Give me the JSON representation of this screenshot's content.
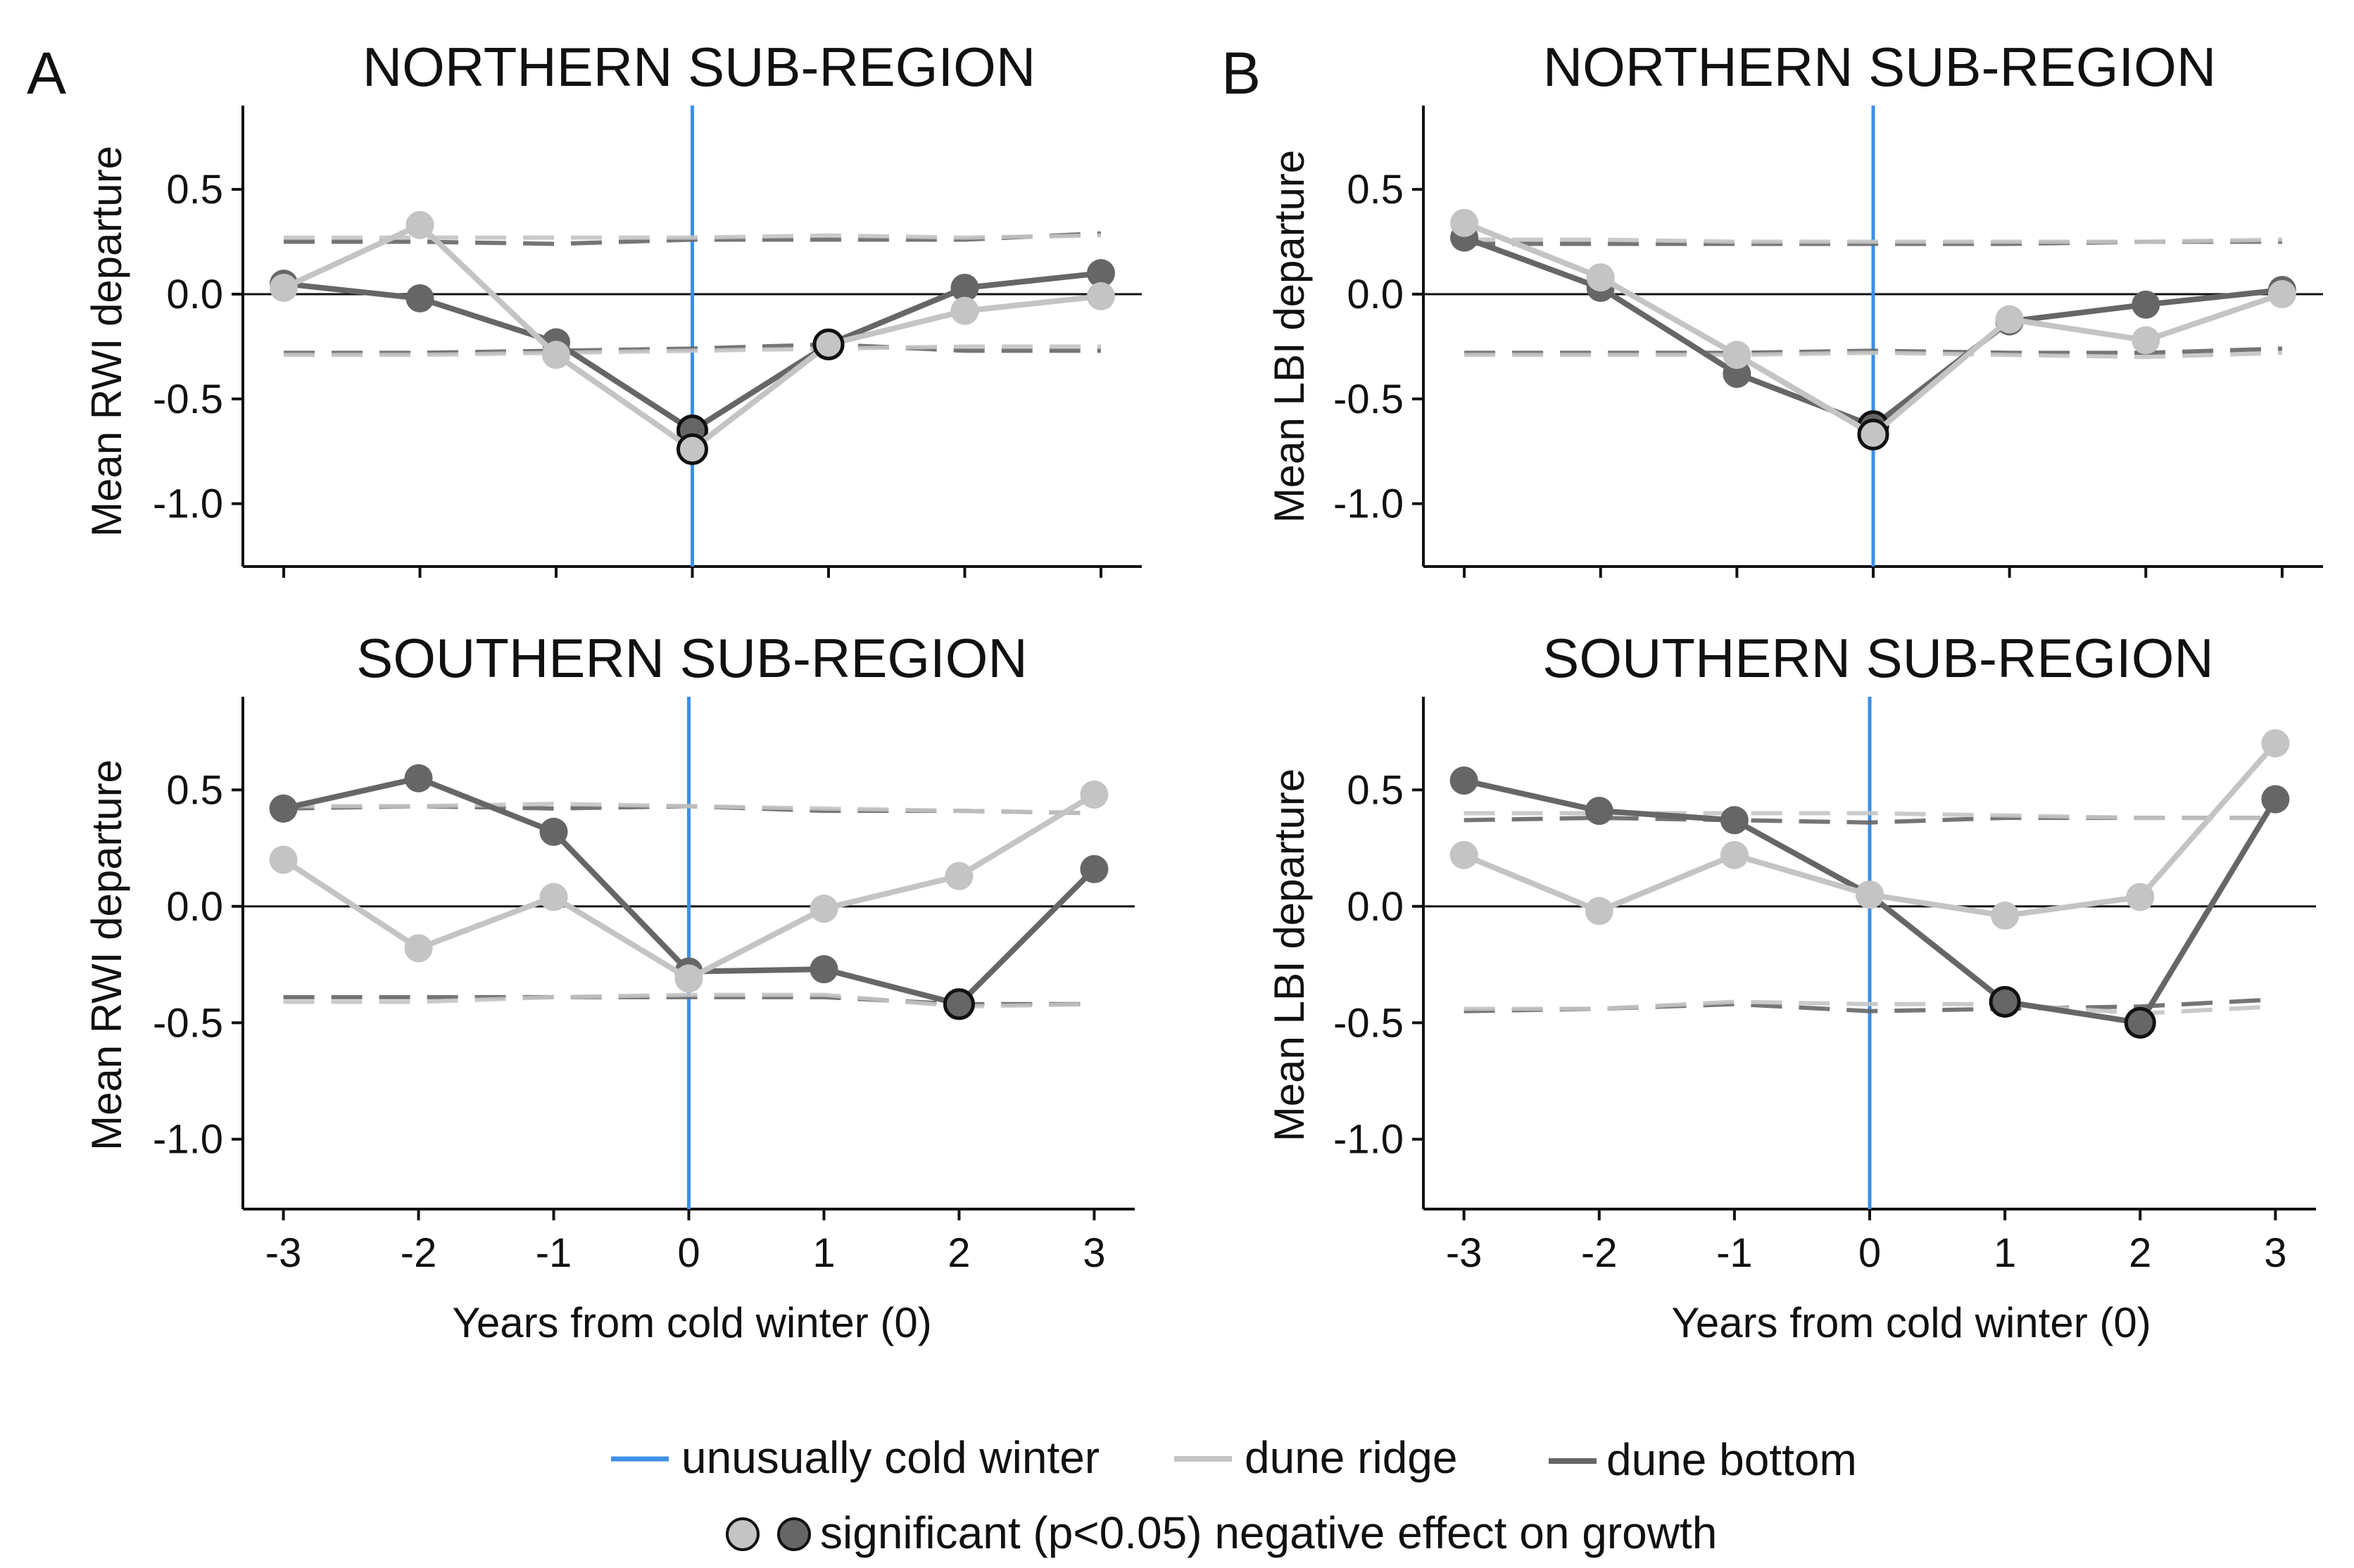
{
  "colors": {
    "cold": "#3d8fe6",
    "ridge": "#c4c4c4",
    "bottom": "#666666",
    "axis": "#111111"
  },
  "chart_data": [
    {
      "type": "line",
      "panel_letter": "A",
      "title": "NORTHERN SUB-REGION",
      "ylabel": "Mean RWI departure",
      "xlabel": "",
      "x": [
        -3,
        -2,
        -1,
        0,
        1,
        2,
        3
      ],
      "xlim": [
        -3.3,
        3.3
      ],
      "ylim": [
        -1.3,
        0.9
      ],
      "yticks": [
        -1.0,
        -0.5,
        0.0,
        0.5
      ],
      "ytick_labels": [
        "-1.0",
        "-0.5",
        "0.0",
        "0.5"
      ],
      "cold_winter_x": 0,
      "series": [
        {
          "name": "dune bottom",
          "values": [
            0.05,
            -0.02,
            -0.23,
            -0.65,
            -0.24,
            0.03,
            0.1
          ],
          "significant": [
            false,
            false,
            false,
            true,
            true,
            false,
            false
          ]
        },
        {
          "name": "dune ridge",
          "values": [
            0.03,
            0.33,
            -0.29,
            -0.74,
            -0.24,
            -0.08,
            -0.01
          ],
          "significant": [
            false,
            false,
            false,
            true,
            true,
            false,
            false
          ]
        }
      ],
      "thresholds": [
        {
          "series": "dune bottom",
          "values": [
            0.25,
            0.25,
            0.24,
            0.26,
            0.26,
            0.26,
            0.29
          ]
        },
        {
          "series": "dune bottom",
          "values": [
            -0.28,
            -0.28,
            -0.27,
            -0.26,
            -0.24,
            -0.27,
            -0.27
          ]
        },
        {
          "series": "dune ridge",
          "values": [
            0.27,
            0.27,
            0.27,
            0.27,
            0.28,
            0.27,
            0.28
          ]
        },
        {
          "series": "dune ridge",
          "values": [
            -0.29,
            -0.29,
            -0.28,
            -0.27,
            -0.26,
            -0.25,
            -0.25
          ]
        }
      ]
    },
    {
      "type": "line",
      "panel_letter": "B",
      "title": "NORTHERN SUB-REGION",
      "ylabel": "Mean LBI departure",
      "xlabel": "",
      "x": [
        -3,
        -2,
        -1,
        0,
        1,
        2,
        3
      ],
      "xlim": [
        -3.3,
        3.3
      ],
      "ylim": [
        -1.3,
        0.9
      ],
      "yticks": [
        -1.0,
        -0.5,
        0.0,
        0.5
      ],
      "ytick_labels": [
        "-1.0",
        "-0.5",
        "0.0",
        "0.5"
      ],
      "cold_winter_x": 0,
      "series": [
        {
          "name": "dune bottom",
          "values": [
            0.27,
            0.03,
            -0.38,
            -0.63,
            -0.13,
            -0.05,
            0.02
          ],
          "significant": [
            false,
            false,
            false,
            true,
            false,
            false,
            false
          ]
        },
        {
          "name": "dune ridge",
          "values": [
            0.34,
            0.08,
            -0.29,
            -0.67,
            -0.12,
            -0.22,
            0.0
          ],
          "significant": [
            false,
            false,
            false,
            true,
            false,
            false,
            false
          ]
        }
      ],
      "thresholds": [
        {
          "series": "dune bottom",
          "values": [
            0.24,
            0.24,
            0.24,
            0.24,
            0.24,
            0.25,
            0.25
          ]
        },
        {
          "series": "dune bottom",
          "values": [
            -0.28,
            -0.28,
            -0.28,
            -0.27,
            -0.28,
            -0.28,
            -0.26
          ]
        },
        {
          "series": "dune ridge",
          "values": [
            0.26,
            0.26,
            0.25,
            0.25,
            0.25,
            0.25,
            0.26
          ]
        },
        {
          "series": "dune ridge",
          "values": [
            -0.29,
            -0.29,
            -0.29,
            -0.28,
            -0.29,
            -0.3,
            -0.28
          ]
        }
      ]
    },
    {
      "type": "line",
      "panel_letter": "",
      "title": "SOUTHERN SUB-REGION",
      "ylabel": "Mean RWI departure",
      "xlabel": "Years from cold winter (0)",
      "x": [
        -3,
        -2,
        -1,
        0,
        1,
        2,
        3
      ],
      "xtick_labels": [
        "-3",
        "-2",
        "-1",
        "0",
        "1",
        "2",
        "3"
      ],
      "xlim": [
        -3.3,
        3.3
      ],
      "ylim": [
        -1.3,
        0.9
      ],
      "yticks": [
        -1.0,
        -0.5,
        0.0,
        0.5
      ],
      "ytick_labels": [
        "-1.0",
        "-0.5",
        "0.0",
        "0.5"
      ],
      "cold_winter_x": 0,
      "series": [
        {
          "name": "dune bottom",
          "values": [
            0.42,
            0.55,
            0.32,
            -0.28,
            -0.27,
            -0.42,
            0.16
          ],
          "significant": [
            false,
            false,
            false,
            false,
            false,
            true,
            false
          ]
        },
        {
          "name": "dune ridge",
          "values": [
            0.2,
            -0.18,
            0.04,
            -0.31,
            -0.01,
            0.13,
            0.48
          ],
          "significant": [
            false,
            false,
            false,
            false,
            false,
            false,
            false
          ]
        }
      ],
      "thresholds": [
        {
          "series": "dune bottom",
          "values": [
            0.42,
            0.43,
            0.42,
            0.43,
            0.41,
            0.41,
            0.4
          ]
        },
        {
          "series": "dune bottom",
          "values": [
            -0.39,
            -0.39,
            -0.39,
            -0.39,
            -0.39,
            -0.42,
            -0.42
          ]
        },
        {
          "series": "dune ridge",
          "values": [
            0.43,
            0.43,
            0.44,
            0.43,
            0.42,
            0.41,
            0.4
          ]
        },
        {
          "series": "dune ridge",
          "values": [
            -0.41,
            -0.41,
            -0.39,
            -0.38,
            -0.38,
            -0.43,
            -0.42
          ]
        }
      ]
    },
    {
      "type": "line",
      "panel_letter": "",
      "title": "SOUTHERN SUB-REGION",
      "ylabel": "Mean LBI departure",
      "xlabel": "Years from cold winter (0)",
      "x": [
        -3,
        -2,
        -1,
        0,
        1,
        2,
        3
      ],
      "xtick_labels": [
        "-3",
        "-2",
        "-1",
        "0",
        "1",
        "2",
        "3"
      ],
      "xlim": [
        -3.3,
        3.3
      ],
      "ylim": [
        -1.3,
        0.9
      ],
      "yticks": [
        -1.0,
        -0.5,
        0.0,
        0.5
      ],
      "ytick_labels": [
        "-1.0",
        "-0.5",
        "0.0",
        "0.5"
      ],
      "cold_winter_x": 0,
      "series": [
        {
          "name": "dune bottom",
          "values": [
            0.54,
            0.41,
            0.37,
            0.05,
            -0.41,
            -0.5,
            0.46
          ],
          "significant": [
            false,
            false,
            false,
            false,
            true,
            true,
            false
          ]
        },
        {
          "name": "dune ridge",
          "values": [
            0.22,
            -0.02,
            0.22,
            0.05,
            -0.04,
            0.04,
            0.7
          ],
          "significant": [
            false,
            false,
            false,
            false,
            false,
            false,
            false
          ]
        }
      ],
      "thresholds": [
        {
          "series": "dune bottom",
          "values": [
            0.37,
            0.38,
            0.37,
            0.36,
            0.38,
            0.38,
            0.38
          ]
        },
        {
          "series": "dune bottom",
          "values": [
            -0.45,
            -0.44,
            -0.42,
            -0.45,
            -0.44,
            -0.43,
            -0.4
          ]
        },
        {
          "series": "dune ridge",
          "values": [
            0.4,
            0.4,
            0.4,
            0.4,
            0.39,
            0.38,
            0.38
          ]
        },
        {
          "series": "dune ridge",
          "values": [
            -0.44,
            -0.44,
            -0.41,
            -0.42,
            -0.42,
            -0.46,
            -0.43
          ]
        }
      ]
    }
  ],
  "legend": {
    "cold_winter": "unusually cold winter",
    "ridge": "dune ridge",
    "bottom": "dune bottom",
    "significant": "significant (p<0.05) negative effect on growth"
  }
}
